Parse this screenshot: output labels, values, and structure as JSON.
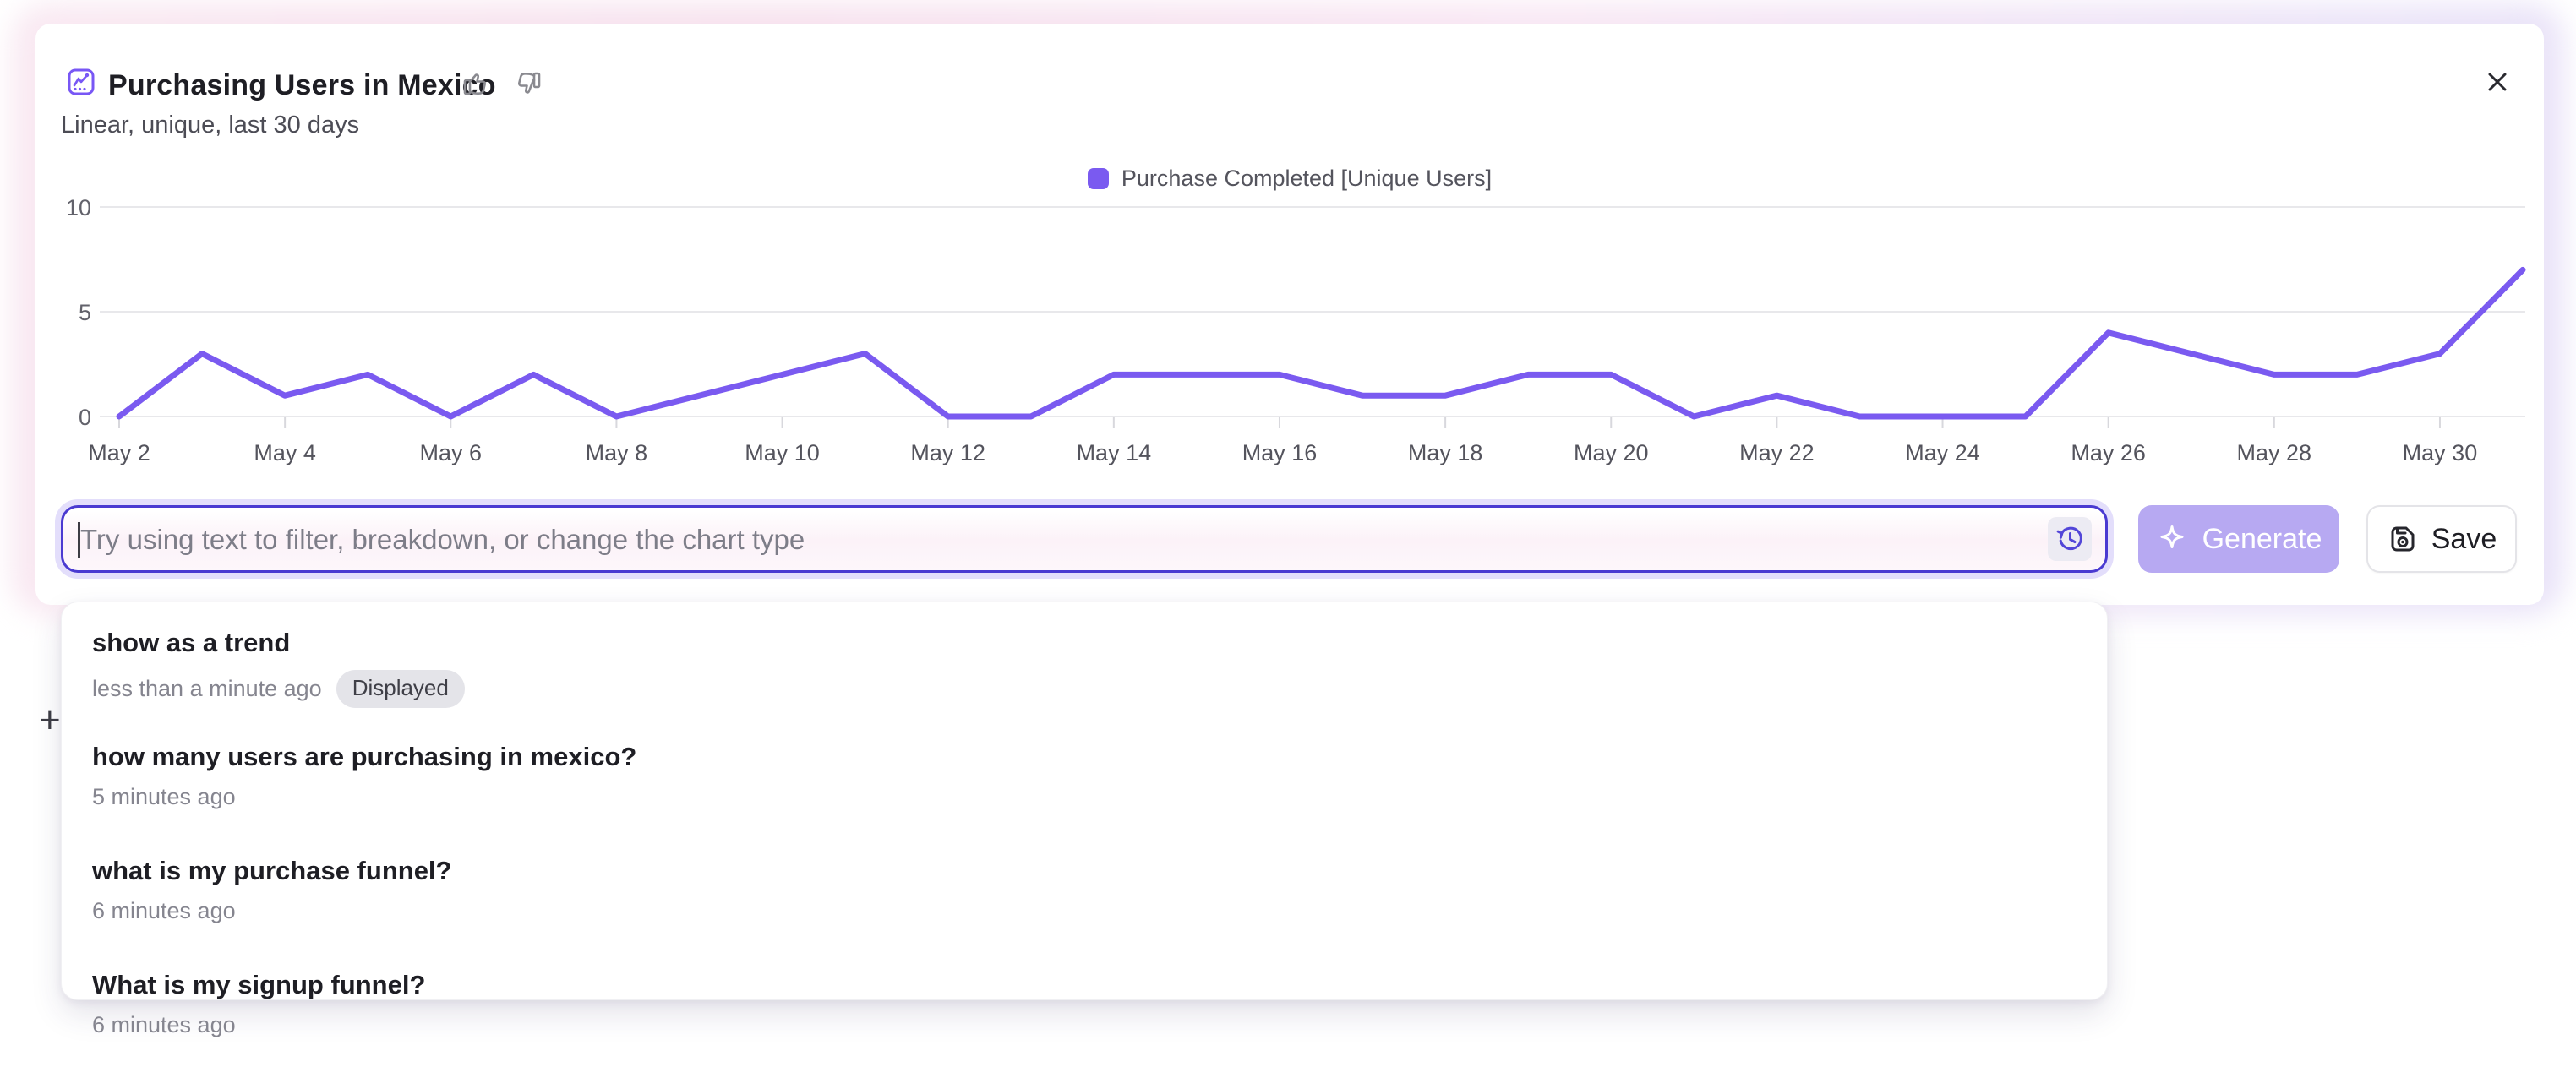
{
  "header": {
    "title": "Purchasing Users in Mexico",
    "subtitle": "Linear, unique, last 30 days"
  },
  "legend": {
    "label": "Purchase Completed [Unique Users]"
  },
  "chart_data": {
    "type": "line",
    "title": "Purchasing Users in Mexico",
    "x": [
      "May 2",
      "May 3",
      "May 4",
      "May 5",
      "May 6",
      "May 7",
      "May 8",
      "May 9",
      "May 10",
      "May 11",
      "May 12",
      "May 13",
      "May 14",
      "May 15",
      "May 16",
      "May 17",
      "May 18",
      "May 19",
      "May 20",
      "May 21",
      "May 22",
      "May 23",
      "May 24",
      "May 25",
      "May 26",
      "May 27",
      "May 28",
      "May 29",
      "May 30",
      "May 31"
    ],
    "x_tick_labels": [
      "May 2",
      "May 4",
      "May 6",
      "May 8",
      "May 10",
      "May 12",
      "May 14",
      "May 16",
      "May 18",
      "May 20",
      "May 22",
      "May 24",
      "May 26",
      "May 28",
      "May 30"
    ],
    "series": [
      {
        "name": "Purchase Completed [Unique Users]",
        "color": "#7a5af0",
        "values": [
          0,
          3,
          1,
          2,
          0,
          2,
          0,
          1,
          2,
          3,
          0,
          0,
          2,
          2,
          2,
          1,
          1,
          2,
          2,
          0,
          1,
          0,
          0,
          0,
          4,
          3,
          2,
          2,
          3,
          7
        ]
      }
    ],
    "yticks": [
      0,
      5,
      10
    ],
    "ylim": [
      0,
      10
    ],
    "grid": true,
    "legend_position": "top-center"
  },
  "prompt_bar": {
    "placeholder": "Try using text to filter, breakdown, or change the chart type",
    "generate_label": "Generate",
    "save_label": "Save"
  },
  "background": {
    "plus_glyph": "+"
  },
  "history_dropdown": {
    "items": [
      {
        "title": "show as a trend",
        "time": "less than a minute ago",
        "badge": "Displayed"
      },
      {
        "title": "how many users are purchasing in mexico?",
        "time": "5 minutes ago"
      },
      {
        "title": "what is my purchase funnel?",
        "time": "6 minutes ago"
      },
      {
        "title": "What is my signup funnel?",
        "time": "6 minutes ago"
      }
    ]
  }
}
